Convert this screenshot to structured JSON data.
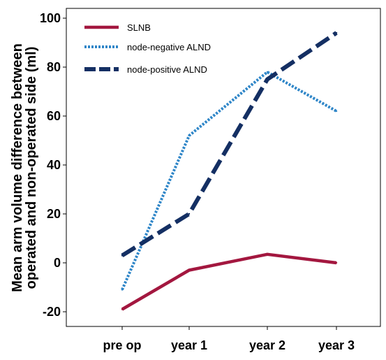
{
  "chart_data": {
    "type": "line",
    "categories": [
      "pre op",
      "year 1",
      "year 2",
      "year 3"
    ],
    "series": [
      {
        "name": "SLNB",
        "values": [
          -19,
          -3,
          3.5,
          0
        ],
        "color": "#a3173f",
        "style": "solid"
      },
      {
        "name": "node-negative ALND",
        "values": [
          -11,
          52,
          78,
          62
        ],
        "color": "#2f86c8",
        "style": "dotted"
      },
      {
        "name": "node-positive ALND",
        "values": [
          3,
          20,
          75,
          94
        ],
        "color": "#142f63",
        "style": "dashed"
      }
    ],
    "ylabel_lines": [
      "Mean arm volume difference between",
      "operated and non-operated side (ml)"
    ],
    "xlabel": "",
    "yticks": [
      -20,
      0,
      20,
      40,
      60,
      80,
      100
    ],
    "ylim": [
      -26,
      104
    ],
    "grid": false,
    "legend": {
      "position": "top-left"
    }
  }
}
